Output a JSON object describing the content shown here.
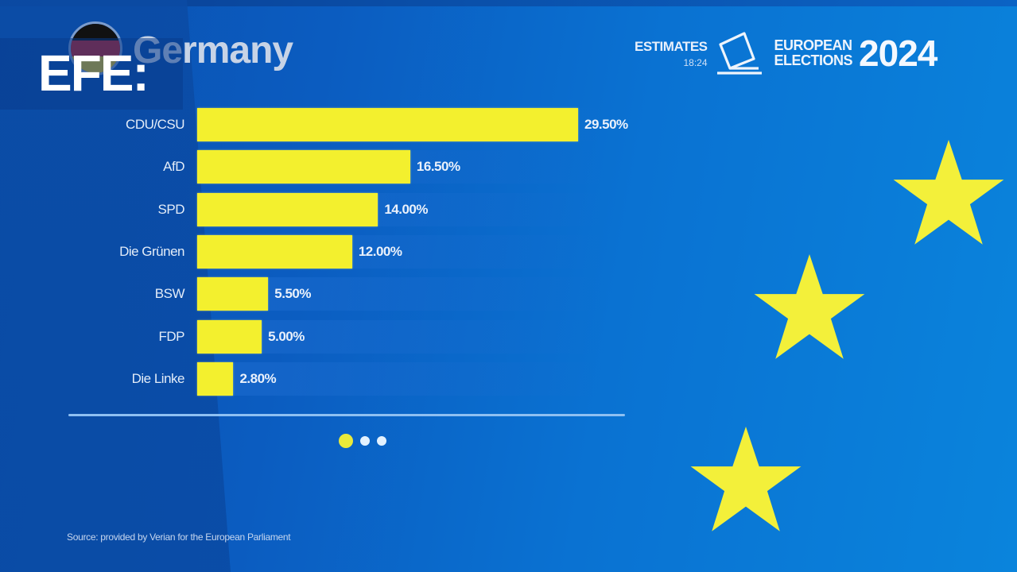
{
  "watermark": {
    "logo_text": "EFE:"
  },
  "header": {
    "country": "Germany",
    "estimates_label": "ESTIMATES",
    "estimates_time": "18:24",
    "election_title_line1": "EUROPEAN",
    "election_title_line2": "ELECTIONS",
    "election_year": "2024"
  },
  "colors": {
    "background": "#0a5cc0",
    "bar": "#f3f02e",
    "star": "#f3f03a",
    "text": "#eaf1fb",
    "flag": [
      "#000000",
      "#dd0000",
      "#ffce00"
    ]
  },
  "chart_data": {
    "type": "bar",
    "orientation": "horizontal",
    "title": "Germany",
    "subtitle": "ESTIMATES 18:24 — EUROPEAN ELECTIONS 2024",
    "categories": [
      "CDU/CSU",
      "AfD",
      "SPD",
      "Die Grünen",
      "BSW",
      "FDP",
      "Die Linke"
    ],
    "values": [
      29.5,
      16.5,
      14.0,
      12.0,
      5.5,
      5.0,
      2.8
    ],
    "value_labels": [
      "29.50%",
      "16.50%",
      "14.00%",
      "12.00%",
      "5.50%",
      "5.00%",
      "2.80%"
    ],
    "xlabel": "",
    "ylabel": "",
    "unit": "%",
    "grid": false,
    "legend": null,
    "source": "Source: provided by Verian for the European Parliament"
  },
  "pagination": {
    "total": 3,
    "active_index": 0
  },
  "footer": {
    "source": "Source: provided by Verian for the European Parliament"
  }
}
